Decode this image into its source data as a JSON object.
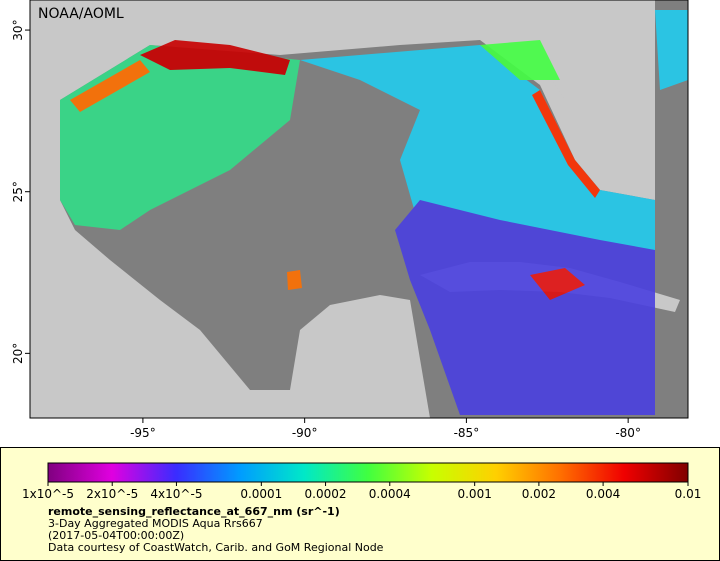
{
  "map": {
    "credit": "NOAA/AOML",
    "lon_range": [
      -98.49,
      -78.15
    ],
    "lat_range": [
      18.0,
      30.93
    ],
    "lon_ticks": [
      {
        "value": -95,
        "label": "-95°"
      },
      {
        "value": -90,
        "label": "-90°"
      },
      {
        "value": -85,
        "label": "-85°"
      },
      {
        "value": -80,
        "label": "-80°"
      }
    ],
    "lat_ticks": [
      {
        "value": 30,
        "label": "30°"
      },
      {
        "value": 25,
        "label": "25°"
      },
      {
        "value": 20,
        "label": "20°"
      }
    ]
  },
  "colorbar": {
    "scale": "log",
    "range": [
      1e-05,
      0.01
    ],
    "colors": [
      "#800080",
      "#e000e0",
      "#3a2cff",
      "#009cff",
      "#00e8c8",
      "#40ff40",
      "#c8ff00",
      "#ffd000",
      "#ff7000",
      "#f00000",
      "#800000"
    ],
    "ticks": [
      {
        "value": 1e-05,
        "label": "1x10^-5"
      },
      {
        "value": 2e-05,
        "label": "2x10^-5"
      },
      {
        "value": 4e-05,
        "label": "4x10^-5"
      },
      0.0001,
      0.0002,
      0.0004,
      0.001,
      0.002,
      0.004,
      0.01
    ]
  },
  "legend": {
    "variable": "remote_sensing_reflectance_at_667_nm (sr^-1)",
    "lines": [
      "3-Day Aggregated MODIS Aqua Rrs667",
      "(2017-05-04T00:00:00Z)",
      "Data courtesy of CoastWatch, Carib. and GoM Regional Node"
    ]
  }
}
